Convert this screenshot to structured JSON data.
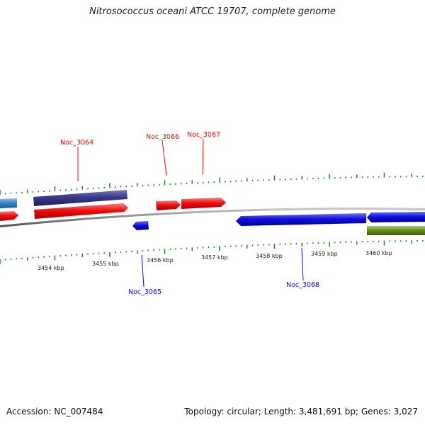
{
  "title": "Nitrosococcus oceani ATCC 19707, complete genome",
  "footer": {
    "accession": "Accession: NC_007484",
    "summary": "Topology: circular; Length: 3,481,691 bp; Genes: 3,027"
  },
  "colors": {
    "forward_gene": "#ee1111",
    "reverse_gene": "#1111dd",
    "navy_feature": "#3a3a8a",
    "steelblue_feature": "#3a86c8",
    "olive_feature": "#6b8e23",
    "backbone": "#8a8a8a",
    "tick": "#1a8a1a"
  },
  "scale_labels": [
    "3454 kbp",
    "3455 kbp",
    "3456 kbp",
    "3457 kbp",
    "3458 kbp",
    "3459 kbp",
    "3460 kbp"
  ],
  "gene_labels": [
    {
      "text": "Noc_3064",
      "strand": "forward"
    },
    {
      "text": "Noc_3065",
      "strand": "reverse"
    },
    {
      "text": "Noc_3066",
      "strand": "forward"
    },
    {
      "text": "Noc_3067",
      "strand": "forward"
    },
    {
      "text": "Noc_3068",
      "strand": "reverse"
    }
  ]
}
